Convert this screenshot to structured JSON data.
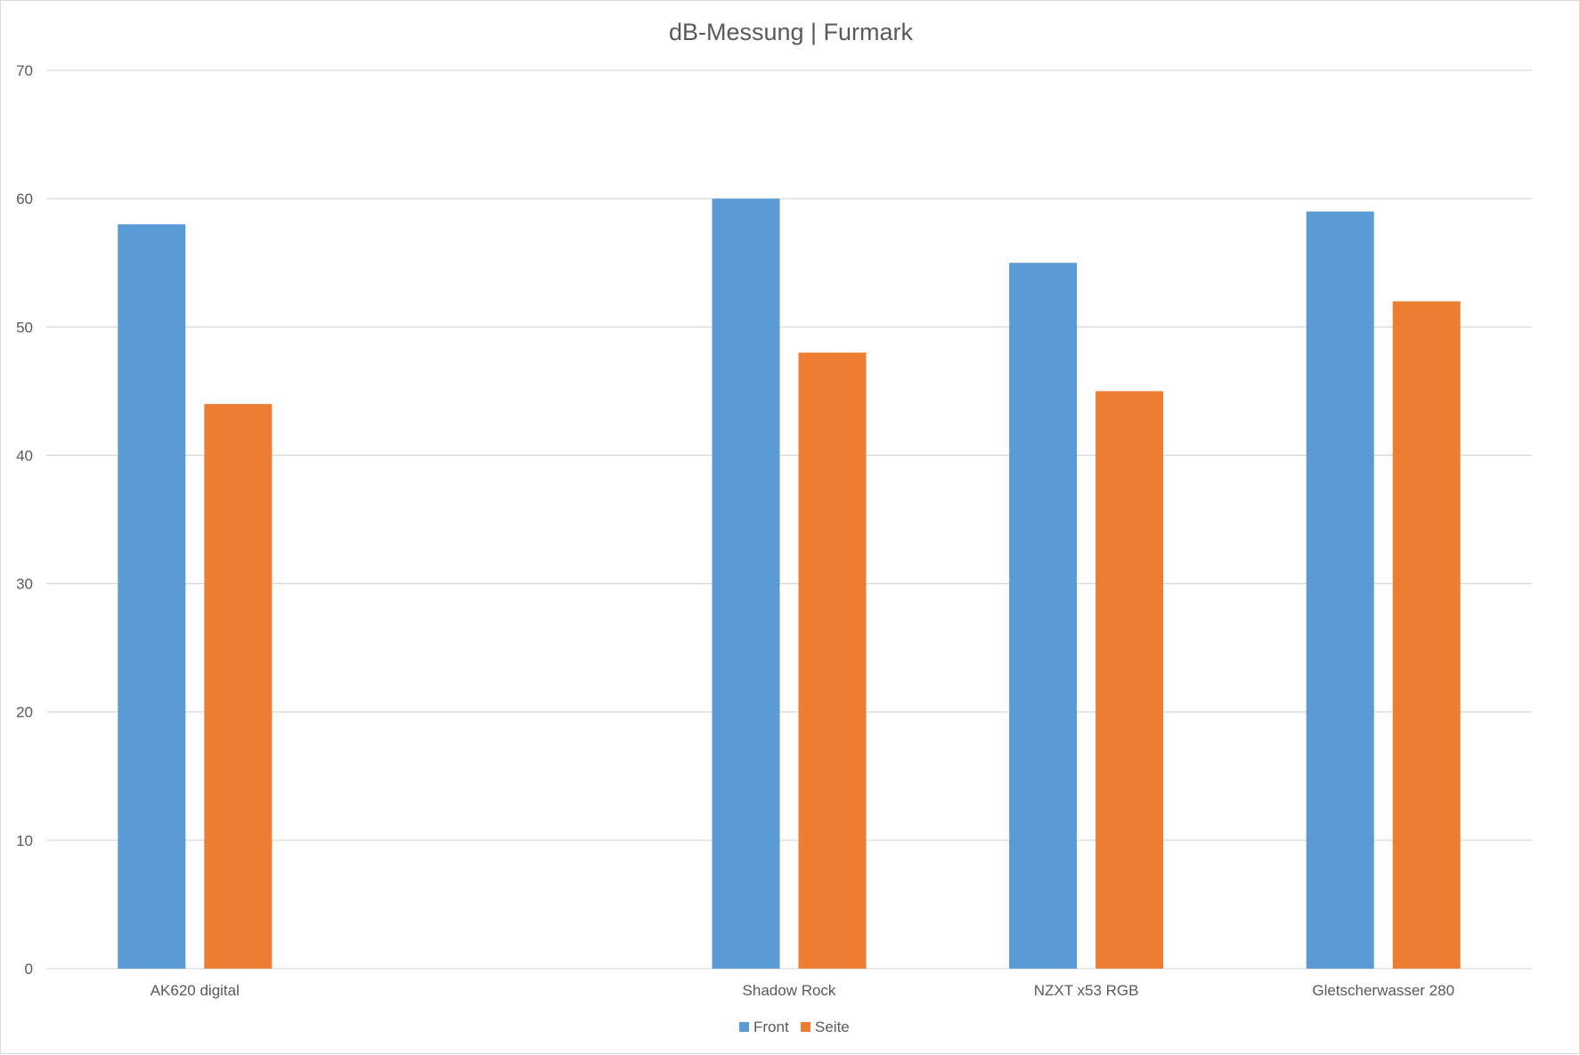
{
  "chart_data": {
    "type": "bar",
    "title": "dB-Messung | Furmark",
    "xlabel": "",
    "ylabel": "",
    "ylim": [
      0,
      70
    ],
    "yticks": [
      0,
      10,
      20,
      30,
      40,
      50,
      60,
      70
    ],
    "categories": [
      "AK620 digital",
      "",
      "Shadow Rock",
      "NZXT x53 RGB",
      "Gletscherwasser 280"
    ],
    "series": [
      {
        "name": "Front",
        "color": "#5b9bd5",
        "values": [
          58,
          null,
          60,
          55,
          59
        ]
      },
      {
        "name": "Seite",
        "color": "#ed7d31",
        "values": [
          44,
          null,
          48,
          45,
          52
        ]
      }
    ],
    "grid": true,
    "legend_position": "bottom"
  }
}
